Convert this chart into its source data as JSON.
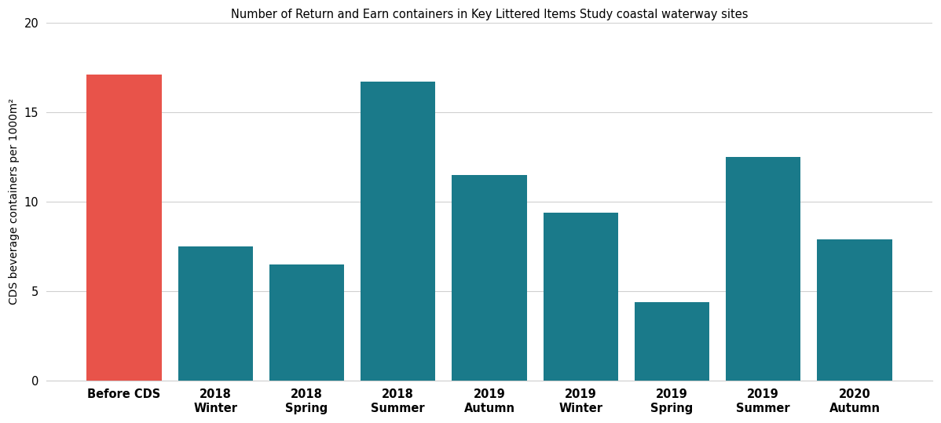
{
  "categories": [
    "Before CDS",
    "2018\nWinter",
    "2018\nSpring",
    "2018\nSummer",
    "2019\nAutumn",
    "2019\nWinter",
    "2019\nSpring",
    "2019\nSummer",
    "2020\nAutumn"
  ],
  "values": [
    17.1,
    7.5,
    6.5,
    16.7,
    11.5,
    9.4,
    4.4,
    12.5,
    7.9
  ],
  "bar_colors": [
    "#E8534A",
    "#1A7A8A",
    "#1A7A8A",
    "#1A7A8A",
    "#1A7A8A",
    "#1A7A8A",
    "#1A7A8A",
    "#1A7A8A",
    "#1A7A8A"
  ],
  "ylabel": "CDS beverage containers per 1000m²",
  "ylim": [
    0,
    20
  ],
  "yticks": [
    0,
    5,
    10,
    15,
    20
  ],
  "title": "Number of Return and Earn containers in Key Littered Items Study coastal waterway sites",
  "background_color": "#ffffff",
  "grid_color": "#d0d0d0",
  "title_fontsize": 10.5,
  "axis_fontsize": 10,
  "tick_fontsize": 10.5,
  "bar_width": 0.82
}
